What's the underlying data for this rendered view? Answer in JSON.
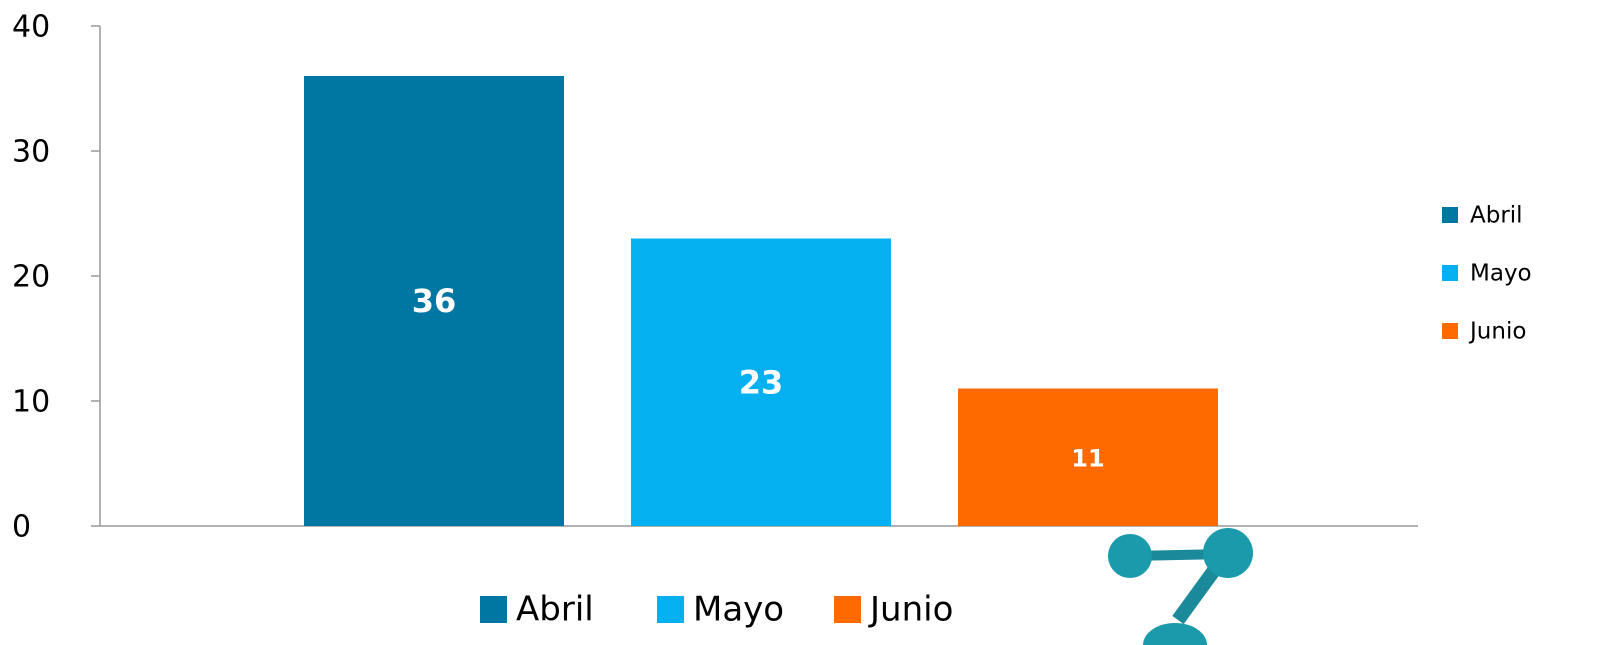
{
  "chart_data": {
    "type": "bar",
    "series": [
      {
        "name": "Abril",
        "color": "#0077a2",
        "values": [
          36
        ]
      },
      {
        "name": "Mayo",
        "color": "#05b0f0",
        "values": [
          23
        ]
      },
      {
        "name": "Junio",
        "color": "#ff6a00",
        "values": [
          11
        ]
      }
    ],
    "ylim": [
      0,
      40
    ],
    "yticks": [
      0,
      10,
      20,
      30,
      40
    ],
    "data_labels": true,
    "legend": [
      "right",
      "bottom"
    ]
  }
}
